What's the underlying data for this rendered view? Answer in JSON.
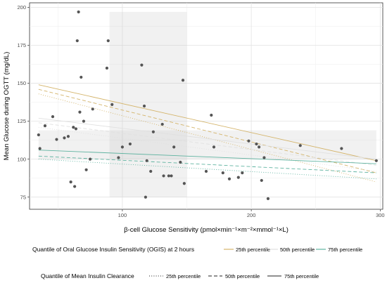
{
  "chart_data": {
    "type": "scatter",
    "title": "",
    "xlabel": "β-cell Glucose Sensitivity (pmol×min⁻¹×m⁻²×mmol⁻¹×L)",
    "ylabel": "Mean Glucose during OGTT (mg/dL)",
    "xlim": [
      28,
      302
    ],
    "ylim": [
      67,
      203
    ],
    "x_ticks": [
      100,
      200,
      300
    ],
    "y_ticks": [
      75,
      100,
      125,
      150,
      175,
      200
    ],
    "grid": true,
    "shaded_regions": [
      {
        "x": [
          90,
          150
        ],
        "y": [
          75,
          197
        ]
      },
      {
        "x": [
          35,
          297
        ],
        "y": [
          100,
          119
        ]
      }
    ],
    "points": [
      [
        35,
        116
      ],
      [
        36,
        107
      ],
      [
        40,
        122
      ],
      [
        46,
        128
      ],
      [
        49,
        113
      ],
      [
        55,
        114
      ],
      [
        58,
        115
      ],
      [
        60,
        85
      ],
      [
        62,
        121
      ],
      [
        63,
        82
      ],
      [
        64,
        120
      ],
      [
        65,
        178
      ],
      [
        66,
        197
      ],
      [
        67,
        131
      ],
      [
        68,
        154
      ],
      [
        70,
        125
      ],
      [
        72,
        93
      ],
      [
        75,
        100
      ],
      [
        77,
        133
      ],
      [
        88,
        160
      ],
      [
        89,
        178
      ],
      [
        92,
        136
      ],
      [
        97,
        101
      ],
      [
        100,
        108
      ],
      [
        106,
        110
      ],
      [
        115,
        162
      ],
      [
        117,
        135
      ],
      [
        118,
        75
      ],
      [
        119,
        99
      ],
      [
        122,
        92
      ],
      [
        124,
        118
      ],
      [
        131,
        123
      ],
      [
        132,
        89
      ],
      [
        136,
        89
      ],
      [
        138,
        89
      ],
      [
        140,
        108
      ],
      [
        145,
        98
      ],
      [
        147,
        152
      ],
      [
        148,
        84
      ],
      [
        165,
        92
      ],
      [
        169,
        129
      ],
      [
        171,
        108
      ],
      [
        178,
        91
      ],
      [
        183,
        87
      ],
      [
        190,
        88
      ],
      [
        193,
        91
      ],
      [
        198,
        112
      ],
      [
        204,
        110
      ],
      [
        206,
        108
      ],
      [
        208,
        86
      ],
      [
        210,
        101
      ],
      [
        213,
        74
      ],
      [
        238,
        109
      ],
      [
        270,
        107
      ],
      [
        297,
        99
      ]
    ],
    "lines": [
      {
        "ogis": "25th percentile",
        "clearance": "75th percentile",
        "color": "#d4b46a",
        "dash": "solid",
        "x": [
          35,
          297
        ],
        "y": [
          149,
          99
        ]
      },
      {
        "ogis": "25th percentile",
        "clearance": "50th percentile",
        "color": "#d4b46a",
        "dash": "dashed",
        "x": [
          35,
          297
        ],
        "y": [
          146,
          91
        ]
      },
      {
        "ogis": "25th percentile",
        "clearance": "25th percentile",
        "color": "#d4b46a",
        "dash": "dotted",
        "x": [
          35,
          297
        ],
        "y": [
          143,
          85
        ]
      },
      {
        "ogis": "50th percentile",
        "clearance": "75th percentile",
        "color": "#e0e0e0",
        "dash": "solid",
        "x": [
          35,
          297
        ],
        "y": [
          127,
          100
        ]
      },
      {
        "ogis": "50th percentile",
        "clearance": "50th percentile",
        "color": "#e0e0e0",
        "dash": "dashed",
        "x": [
          35,
          297
        ],
        "y": [
          124,
          96
        ]
      },
      {
        "ogis": "50th percentile",
        "clearance": "25th percentile",
        "color": "#e0e0e0",
        "dash": "dotted",
        "x": [
          35,
          297
        ],
        "y": [
          121,
          92
        ]
      },
      {
        "ogis": "75th percentile",
        "clearance": "75th percentile",
        "color": "#5fb3a0",
        "dash": "solid",
        "x": [
          35,
          297
        ],
        "y": [
          106,
          97
        ]
      },
      {
        "ogis": "75th percentile",
        "clearance": "50th percentile",
        "color": "#5fb3a0",
        "dash": "dashed",
        "x": [
          35,
          297
        ],
        "y": [
          102,
          91
        ]
      },
      {
        "ogis": "75th percentile",
        "clearance": "25th percentile",
        "color": "#5fb3a0",
        "dash": "dotted",
        "x": [
          35,
          297
        ],
        "y": [
          100,
          87
        ]
      }
    ]
  },
  "legend": {
    "ogis": {
      "title": "Quantile of Oral Glucose Insulin Sensitivity (OGIS) at 2 hours",
      "items": [
        {
          "label": "25th percentile",
          "color": "#d4b46a"
        },
        {
          "label": "50th percentile",
          "color": "#e0e0e0"
        },
        {
          "label": "75th percentile",
          "color": "#5fb3a0"
        }
      ]
    },
    "clearance": {
      "title": "Quantile of Mean Insulin Clearance",
      "items": [
        {
          "label": "25th percentile",
          "dash": "dotted"
        },
        {
          "label": "50th percentile",
          "dash": "dashed"
        },
        {
          "label": "75th percentile",
          "dash": "solid"
        }
      ]
    }
  }
}
